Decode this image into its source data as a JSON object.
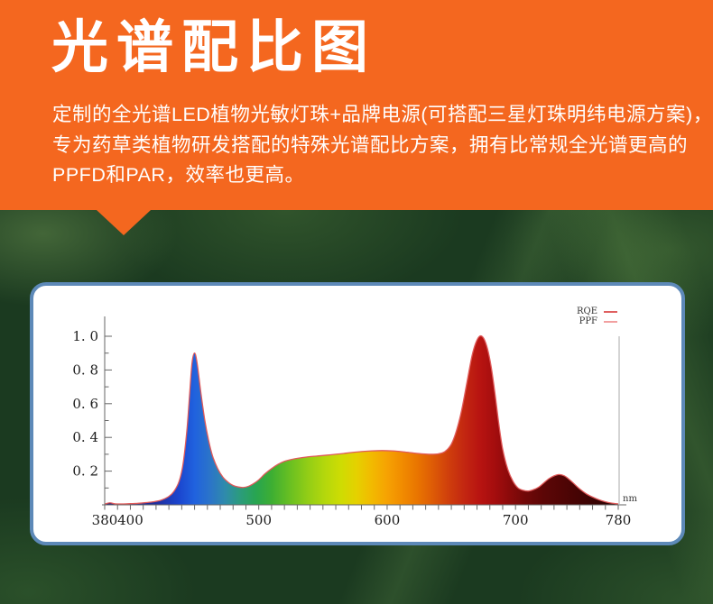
{
  "hero": {
    "title": "光谱配比图",
    "description_lines": [
      "定制的全光谱LED植物光敏灯珠+品牌电源(可搭配三星灯珠明纬电源方案)，",
      "专为药草类植物研发搭配的特殊光谱配比方案，拥有比常规全光谱更高的",
      "PPFD和PAR，效率也更高。"
    ]
  },
  "colors": {
    "hero_bg": "#f4671f",
    "hero_text": "#ffffff",
    "foliage_base": "#1b3a20",
    "card_bg": "#ffffff",
    "card_border": "#5d89b8",
    "axis_line": "#666666",
    "right_axis_line": "#aaaaaa",
    "axis_label": "#1d1d1d",
    "curve_outline": "#e05a5a",
    "unit_label": "#333333"
  },
  "chart_data": {
    "type": "area",
    "title": "",
    "xlabel": "",
    "ylabel": "",
    "x_unit": "nm",
    "x_min": 380,
    "x_max": 780,
    "x_tick_labels": [
      "380",
      "400",
      "500",
      "600",
      "700",
      "780"
    ],
    "x_minor_tick_step": 10,
    "y_tick_values": [
      0.2,
      0.4,
      0.6,
      0.8,
      1.0
    ],
    "y_tick_labels": [
      "0. 2",
      "0. 4",
      "0. 6",
      "0. 8",
      "1. 0"
    ],
    "y_minor_tick_step": 0.1,
    "ylim": [
      0,
      1.05
    ],
    "grid": "off",
    "legend_position": "top-right",
    "legend": [
      {
        "label": "RQE",
        "color": "#df5f5f"
      },
      {
        "label": "PPF",
        "color": "#f2a0a0"
      }
    ],
    "series": [
      {
        "name": "spectrum",
        "points": [
          [
            380,
            0.004
          ],
          [
            384,
            0.012
          ],
          [
            388,
            0.006
          ],
          [
            394,
            0.005
          ],
          [
            400,
            0.007
          ],
          [
            406,
            0.009
          ],
          [
            412,
            0.013
          ],
          [
            418,
            0.018
          ],
          [
            424,
            0.028
          ],
          [
            430,
            0.05
          ],
          [
            434,
            0.08
          ],
          [
            438,
            0.14
          ],
          [
            441,
            0.24
          ],
          [
            444,
            0.44
          ],
          [
            446,
            0.64
          ],
          [
            448,
            0.84
          ],
          [
            450,
            0.9
          ],
          [
            452,
            0.84
          ],
          [
            455,
            0.66
          ],
          [
            458,
            0.5
          ],
          [
            461,
            0.38
          ],
          [
            464,
            0.29
          ],
          [
            468,
            0.215
          ],
          [
            472,
            0.165
          ],
          [
            476,
            0.135
          ],
          [
            480,
            0.115
          ],
          [
            484,
            0.106
          ],
          [
            488,
            0.103
          ],
          [
            492,
            0.11
          ],
          [
            496,
            0.126
          ],
          [
            500,
            0.148
          ],
          [
            505,
            0.185
          ],
          [
            510,
            0.215
          ],
          [
            515,
            0.24
          ],
          [
            520,
            0.258
          ],
          [
            526,
            0.27
          ],
          [
            532,
            0.278
          ],
          [
            540,
            0.286
          ],
          [
            548,
            0.291
          ],
          [
            556,
            0.297
          ],
          [
            564,
            0.303
          ],
          [
            572,
            0.31
          ],
          [
            580,
            0.316
          ],
          [
            588,
            0.32
          ],
          [
            596,
            0.322
          ],
          [
            604,
            0.32
          ],
          [
            612,
            0.315
          ],
          [
            620,
            0.308
          ],
          [
            628,
            0.302
          ],
          [
            634,
            0.3
          ],
          [
            640,
            0.303
          ],
          [
            645,
            0.316
          ],
          [
            650,
            0.36
          ],
          [
            654,
            0.44
          ],
          [
            658,
            0.56
          ],
          [
            662,
            0.72
          ],
          [
            666,
            0.88
          ],
          [
            669,
            0.96
          ],
          [
            672,
            1.0
          ],
          [
            675,
            0.99
          ],
          [
            678,
            0.93
          ],
          [
            681,
            0.82
          ],
          [
            684,
            0.66
          ],
          [
            687,
            0.48
          ],
          [
            690,
            0.33
          ],
          [
            694,
            0.21
          ],
          [
            698,
            0.14
          ],
          [
            702,
            0.1
          ],
          [
            706,
            0.086
          ],
          [
            710,
            0.082
          ],
          [
            714,
            0.09
          ],
          [
            718,
            0.105
          ],
          [
            722,
            0.13
          ],
          [
            726,
            0.155
          ],
          [
            730,
            0.172
          ],
          [
            734,
            0.18
          ],
          [
            738,
            0.172
          ],
          [
            742,
            0.15
          ],
          [
            746,
            0.122
          ],
          [
            750,
            0.094
          ],
          [
            755,
            0.066
          ],
          [
            760,
            0.046
          ],
          [
            765,
            0.03
          ],
          [
            770,
            0.018
          ],
          [
            775,
            0.01
          ],
          [
            780,
            0.006
          ]
        ]
      }
    ],
    "spectrum_gradient": [
      {
        "nm": 380,
        "color": "#1b1b72"
      },
      {
        "nm": 420,
        "color": "#202f9e"
      },
      {
        "nm": 438,
        "color": "#1b46cf"
      },
      {
        "nm": 450,
        "color": "#2062de"
      },
      {
        "nm": 462,
        "color": "#2b74c9"
      },
      {
        "nm": 474,
        "color": "#2f8bab"
      },
      {
        "nm": 486,
        "color": "#2b9c7a"
      },
      {
        "nm": 498,
        "color": "#28a550"
      },
      {
        "nm": 510,
        "color": "#3dae33"
      },
      {
        "nm": 524,
        "color": "#68bf22"
      },
      {
        "nm": 538,
        "color": "#92cd16"
      },
      {
        "nm": 552,
        "color": "#b5d80c"
      },
      {
        "nm": 564,
        "color": "#cedc03"
      },
      {
        "nm": 576,
        "color": "#e5d100"
      },
      {
        "nm": 588,
        "color": "#f2ba00"
      },
      {
        "nm": 600,
        "color": "#f6a202"
      },
      {
        "nm": 612,
        "color": "#f18b00"
      },
      {
        "nm": 624,
        "color": "#e97400"
      },
      {
        "nm": 636,
        "color": "#dd5a06"
      },
      {
        "nm": 648,
        "color": "#cf3e0c"
      },
      {
        "nm": 660,
        "color": "#c32711"
      },
      {
        "nm": 672,
        "color": "#b81411"
      },
      {
        "nm": 684,
        "color": "#a40d0e"
      },
      {
        "nm": 696,
        "color": "#890a0a"
      },
      {
        "nm": 708,
        "color": "#700808"
      },
      {
        "nm": 722,
        "color": "#5c0606"
      },
      {
        "nm": 736,
        "color": "#510505"
      },
      {
        "nm": 752,
        "color": "#420404"
      },
      {
        "nm": 766,
        "color": "#350303"
      },
      {
        "nm": 780,
        "color": "#2b0303"
      }
    ]
  }
}
